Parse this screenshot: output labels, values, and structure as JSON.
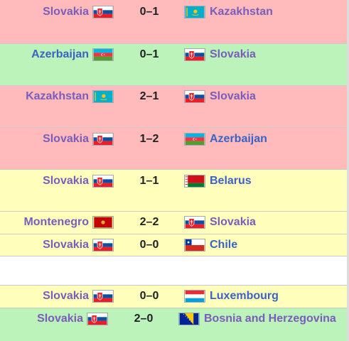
{
  "matches": [
    {
      "home": "Slovakia",
      "home_flag": "slovakia",
      "score": "0–1",
      "away": "Kazakhstan",
      "away_flag": "kazakhstan",
      "result": "loss"
    },
    {
      "home": "Azerbaijan",
      "home_flag": "azerbaijan",
      "score": "0–1",
      "away": "Slovakia",
      "away_flag": "slovakia",
      "result": "win"
    },
    {
      "home": "Kazakhstan",
      "home_flag": "kazakhstan",
      "score": "2–1",
      "away": "Slovakia",
      "away_flag": "slovakia",
      "result": "loss"
    },
    {
      "home": "Slovakia",
      "home_flag": "slovakia",
      "score": "1–2",
      "away": "Azerbaijan",
      "away_flag": "azerbaijan",
      "result": "loss"
    },
    {
      "home": "Slovakia",
      "home_flag": "slovakia",
      "score": "1–1",
      "away": "Belarus",
      "away_flag": "belarus",
      "result": "draw"
    },
    {
      "home": "Montenegro",
      "home_flag": "montenegro",
      "score": "2–2",
      "away": "Slovakia",
      "away_flag": "slovakia",
      "result": "draw"
    },
    {
      "home": "Slovakia",
      "home_flag": "slovakia",
      "score": "0–0",
      "away": "Chile",
      "away_flag": "chile",
      "result": "draw"
    },
    {
      "home": "Slovakia",
      "home_flag": "slovakia",
      "score": "0–0",
      "away": "Luxembourg",
      "away_flag": "luxembourg",
      "result": "draw"
    },
    {
      "home": "Slovakia",
      "home_flag": "slovakia",
      "score": "2–0",
      "away": "Bosnia and Herzegovina",
      "away_flag": "bosnia",
      "result": "win"
    }
  ],
  "colors": {
    "loss": "#ffbbbb",
    "win": "#bbf3bb",
    "draw": "#ffffbb",
    "link": "#3a63c5",
    "visited": "#7a5dbb"
  }
}
